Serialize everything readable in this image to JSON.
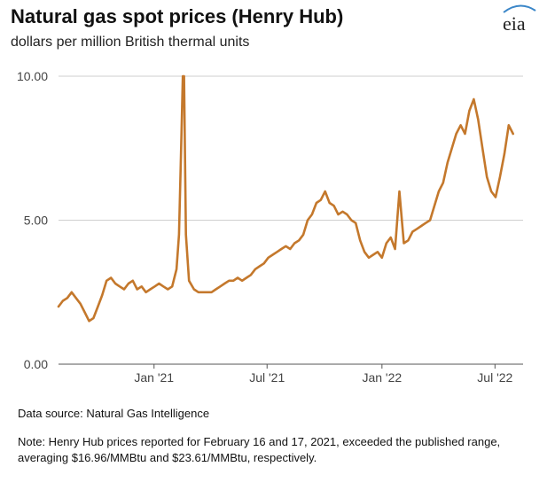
{
  "header": {
    "title": "Natural gas spot prices (Henry Hub)",
    "subtitle": "dollars per million British thermal units",
    "logo_text": "eia"
  },
  "footer": {
    "source": "Data source: Natural Gas Intelligence",
    "note": "Note: Henry Hub prices reported for February 16 and 17, 2021, exceeded the published range, averaging $16.96/MMBtu and $23.61/MMBtu, respectively."
  },
  "colors": {
    "series": "#c4782c",
    "grid": "#cfcfcf",
    "axis": "#555555",
    "logo_arc": "#3a86c8"
  },
  "chart_data": {
    "type": "line",
    "title": "Natural gas spot prices (Henry Hub)",
    "ylabel": "dollars per million British thermal units",
    "xlim": [
      "2020-08-01",
      "2022-08-15"
    ],
    "ylim": [
      0,
      10
    ],
    "yticks": [
      0,
      5,
      10
    ],
    "ytick_labels": [
      "0.00",
      "5.00",
      "10.00"
    ],
    "xticks": [
      "2021-01-01",
      "2021-07-01",
      "2022-01-01",
      "2022-07-01"
    ],
    "xtick_labels": [
      "Jan '21",
      "Jul '21",
      "Jan '22",
      "Jul '22"
    ],
    "grid": true,
    "series": [
      {
        "x": [
          "2020-08-01",
          "2020-08-08",
          "2020-08-15",
          "2020-08-22",
          "2020-08-29",
          "2020-09-05",
          "2020-09-12",
          "2020-09-19",
          "2020-09-26",
          "2020-10-03",
          "2020-10-10",
          "2020-10-17",
          "2020-10-24",
          "2020-10-31",
          "2020-11-07",
          "2020-11-14",
          "2020-11-21",
          "2020-11-28",
          "2020-12-05",
          "2020-12-12",
          "2020-12-19",
          "2020-12-26",
          "2021-01-02",
          "2021-01-09",
          "2021-01-16",
          "2021-01-23",
          "2021-01-30",
          "2021-02-06",
          "2021-02-10",
          "2021-02-14",
          "2021-02-16",
          "2021-02-18",
          "2021-02-21",
          "2021-02-26",
          "2021-03-06",
          "2021-03-13",
          "2021-03-20",
          "2021-03-27",
          "2021-04-03",
          "2021-04-10",
          "2021-04-17",
          "2021-04-24",
          "2021-05-01",
          "2021-05-08",
          "2021-05-15",
          "2021-05-22",
          "2021-05-29",
          "2021-06-05",
          "2021-06-12",
          "2021-06-19",
          "2021-06-26",
          "2021-07-03",
          "2021-07-10",
          "2021-07-17",
          "2021-07-24",
          "2021-07-31",
          "2021-08-07",
          "2021-08-14",
          "2021-08-21",
          "2021-08-28",
          "2021-09-04",
          "2021-09-11",
          "2021-09-18",
          "2021-09-25",
          "2021-10-02",
          "2021-10-09",
          "2021-10-16",
          "2021-10-23",
          "2021-10-30",
          "2021-11-06",
          "2021-11-13",
          "2021-11-20",
          "2021-11-27",
          "2021-12-04",
          "2021-12-11",
          "2021-12-18",
          "2021-12-25",
          "2022-01-01",
          "2022-01-08",
          "2022-01-15",
          "2022-01-22",
          "2022-01-29",
          "2022-02-05",
          "2022-02-12",
          "2022-02-19",
          "2022-02-26",
          "2022-03-05",
          "2022-03-12",
          "2022-03-19",
          "2022-03-26",
          "2022-04-02",
          "2022-04-09",
          "2022-04-16",
          "2022-04-23",
          "2022-04-30",
          "2022-05-07",
          "2022-05-14",
          "2022-05-21",
          "2022-05-28",
          "2022-06-04",
          "2022-06-11",
          "2022-06-18",
          "2022-06-25",
          "2022-07-02",
          "2022-07-09",
          "2022-07-16",
          "2022-07-23",
          "2022-07-30"
        ],
        "values": [
          2.0,
          2.2,
          2.3,
          2.5,
          2.3,
          2.1,
          1.8,
          1.5,
          1.6,
          2.0,
          2.4,
          2.9,
          3.0,
          2.8,
          2.7,
          2.6,
          2.8,
          2.9,
          2.6,
          2.7,
          2.5,
          2.6,
          2.7,
          2.8,
          2.7,
          2.6,
          2.7,
          3.3,
          4.5,
          8.0,
          10.0,
          10.0,
          4.5,
          2.9,
          2.6,
          2.5,
          2.5,
          2.5,
          2.5,
          2.6,
          2.7,
          2.8,
          2.9,
          2.9,
          3.0,
          2.9,
          3.0,
          3.1,
          3.3,
          3.4,
          3.5,
          3.7,
          3.8,
          3.9,
          4.0,
          4.1,
          4.0,
          4.2,
          4.3,
          4.5,
          5.0,
          5.2,
          5.6,
          5.7,
          6.0,
          5.6,
          5.5,
          5.2,
          5.3,
          5.2,
          5.0,
          4.9,
          4.3,
          3.9,
          3.7,
          3.8,
          3.9,
          3.7,
          4.2,
          4.4,
          4.0,
          6.0,
          4.2,
          4.3,
          4.6,
          4.7,
          4.8,
          4.9,
          5.0,
          5.5,
          6.0,
          6.3,
          7.0,
          7.5,
          8.0,
          8.3,
          8.0,
          8.8,
          9.2,
          8.5,
          7.5,
          6.5,
          6.0,
          5.8,
          6.5,
          7.3,
          8.3,
          8.0
        ]
      }
    ]
  }
}
